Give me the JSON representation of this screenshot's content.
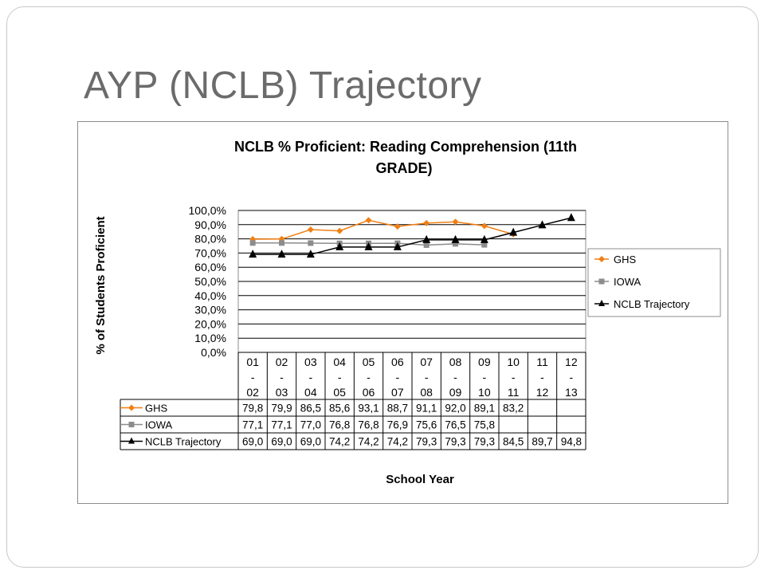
{
  "slide": {
    "title": "AYP (NCLB) Trajectory"
  },
  "chart_data": {
    "type": "line",
    "title_lines": [
      "NCLB % Proficient:  Reading Comprehension (11th",
      "GRADE)"
    ],
    "xlabel": "School Year",
    "ylabel": "% of Students Proficient",
    "ylim": [
      0,
      100
    ],
    "yticks": [
      "0,0%",
      "10,0%",
      "20,0%",
      "30,0%",
      "40,0%",
      "50,0%",
      "60,0%",
      "70,0%",
      "80,0%",
      "90,0%",
      "100,0%"
    ],
    "categories": [
      [
        "01",
        "-",
        "02"
      ],
      [
        "02",
        "-",
        "03"
      ],
      [
        "03",
        "-",
        "04"
      ],
      [
        "04",
        "-",
        "05"
      ],
      [
        "05",
        "-",
        "06"
      ],
      [
        "06",
        "-",
        "07"
      ],
      [
        "07",
        "-",
        "08"
      ],
      [
        "08",
        "-",
        "09"
      ],
      [
        "09",
        "-",
        "10"
      ],
      [
        "10",
        "-",
        "11"
      ],
      [
        "11",
        "-",
        "12"
      ],
      [
        "12",
        "-",
        "13"
      ]
    ],
    "grid": true,
    "legend_position": "right",
    "series": [
      {
        "name": "GHS",
        "marker": "diamond",
        "color": "#F07F14",
        "values": [
          79.8,
          79.9,
          86.5,
          85.6,
          93.1,
          88.7,
          91.1,
          92.0,
          89.1,
          83.2,
          null,
          null
        ],
        "labels": [
          "79,8",
          "79,9",
          "86,5",
          "85,6",
          "93,1",
          "88,7",
          "91,1",
          "92,0",
          "89,1",
          "83,2",
          "",
          ""
        ]
      },
      {
        "name": "IOWA",
        "marker": "square",
        "color": "#8C8C8C",
        "values": [
          77.1,
          77.1,
          77.0,
          76.8,
          76.8,
          76.9,
          75.6,
          76.5,
          75.8,
          null,
          null,
          null
        ],
        "labels": [
          "77,1",
          "77,1",
          "77,0",
          "76,8",
          "76,8",
          "76,9",
          "75,6",
          "76,5",
          "75,8",
          "",
          "",
          ""
        ]
      },
      {
        "name": "NCLB Trajectory",
        "marker": "triangle",
        "color": "#000000",
        "values": [
          69.0,
          69.0,
          69.0,
          74.2,
          74.2,
          74.2,
          79.3,
          79.3,
          79.3,
          84.5,
          89.7,
          94.8
        ],
        "labels": [
          "69,0",
          "69,0",
          "69,0",
          "74,2",
          "74,2",
          "74,2",
          "79,3",
          "79,3",
          "79,3",
          "84,5",
          "89,7",
          "94,8"
        ]
      }
    ]
  }
}
